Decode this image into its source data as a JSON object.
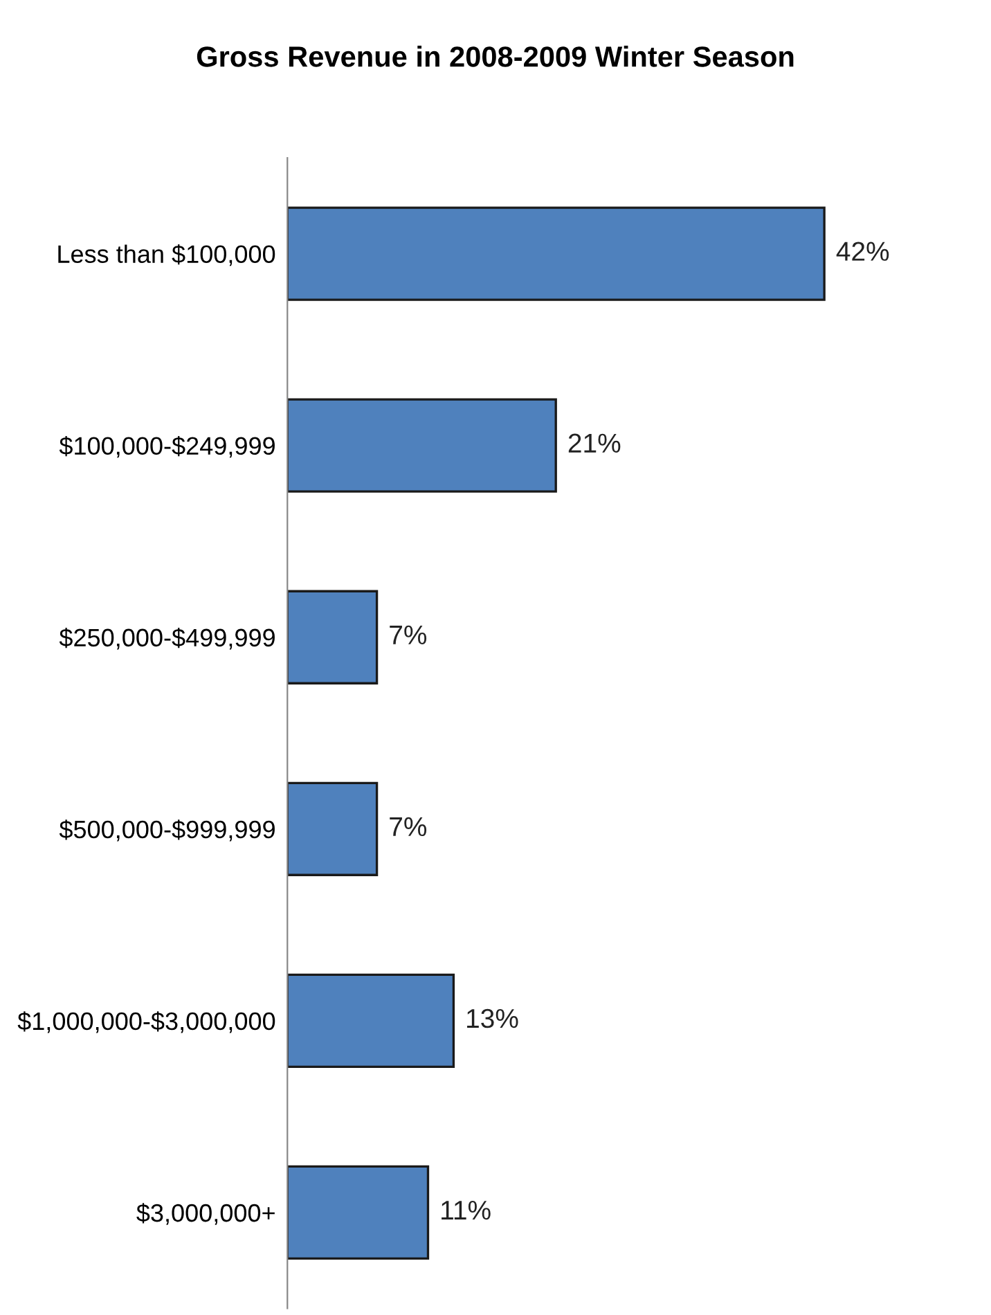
{
  "chart_data": {
    "type": "bar",
    "orientation": "horizontal",
    "title": "Gross Revenue in 2008-2009 Winter Season",
    "categories": [
      "Less than $100,000",
      "$100,000-$249,999",
      "$250,000-$499,999",
      "$500,000-$999,999",
      "$1,000,000-$3,000,000",
      "$3,000,000+"
    ],
    "values": [
      42,
      21,
      7,
      7,
      13,
      11
    ],
    "value_labels": [
      "42%",
      "21%",
      "7%",
      "7%",
      "13%",
      "11%"
    ],
    "color": "#4f81bd",
    "grid": false,
    "legend": false
  }
}
